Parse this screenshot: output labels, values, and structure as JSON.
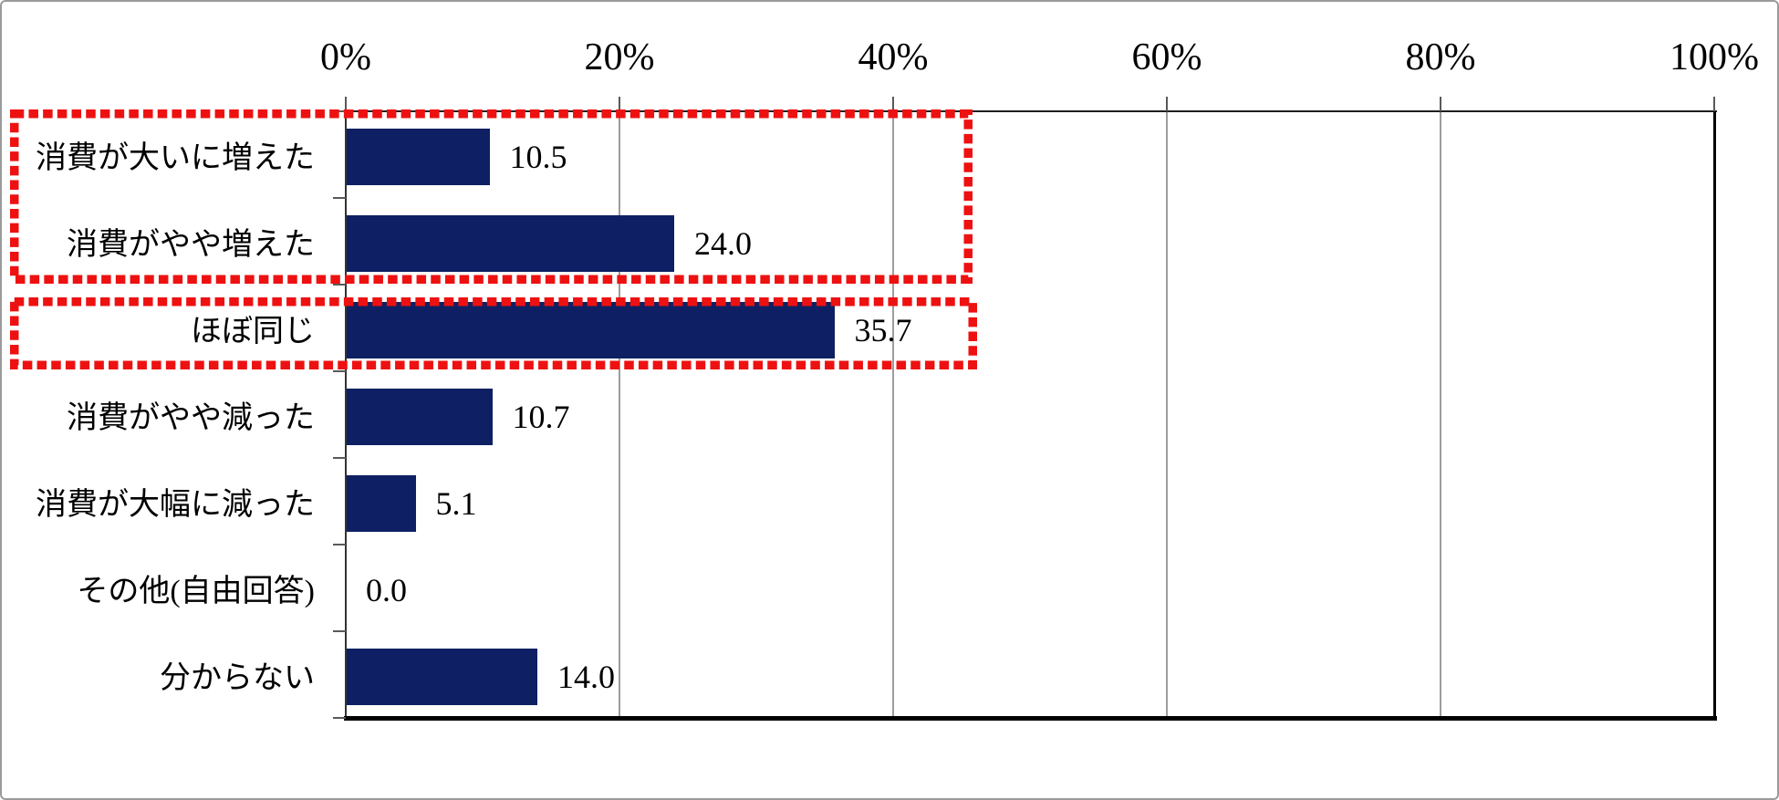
{
  "figure": {
    "background": "#FFFFFF",
    "border_color": "#9A9A9A"
  },
  "chart_data": {
    "type": "bar",
    "orientation": "horizontal",
    "title": "",
    "xlabel": "",
    "ylabel": "",
    "xlim": [
      0,
      100
    ],
    "grid": true,
    "x_tick_labels": [
      "0%",
      "20%",
      "40%",
      "60%",
      "80%",
      "100%"
    ],
    "x_tick_values": [
      0,
      20,
      40,
      60,
      80,
      100
    ],
    "categories": [
      "消費が大いに増えた",
      "消費がやや増えた",
      "ほぼ同じ",
      "消費がやや減った",
      "消費が大幅に減った",
      "その他(自由回答)",
      "分からない"
    ],
    "values": [
      10.5,
      24.0,
      35.7,
      10.7,
      5.1,
      0.0,
      14.0
    ],
    "value_labels": [
      "10.5",
      "24.0",
      "35.7",
      "10.7",
      "5.1",
      "0.0",
      "14.0"
    ],
    "colors": {
      "bar": "#0E2063",
      "highlight_box": "#EE1111",
      "gridline": "#9D9D9D",
      "axis": "#000000",
      "text": "#000000"
    },
    "annotations": [
      {
        "type": "highlight_box",
        "style": "red-dotted",
        "categories": [
          "消費が大いに増えた",
          "消費がやや増えた"
        ]
      },
      {
        "type": "highlight_box",
        "style": "red-dotted",
        "categories": [
          "ほぼ同じ"
        ]
      }
    ],
    "legend": null
  }
}
